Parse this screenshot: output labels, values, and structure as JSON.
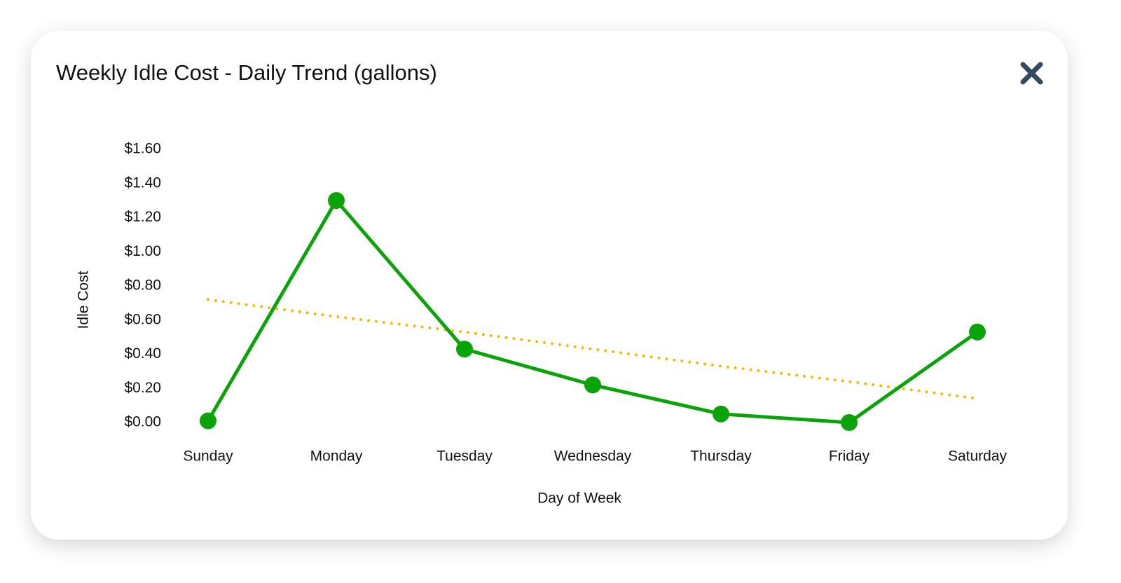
{
  "chart_data": {
    "type": "line",
    "title": "Weekly Idle Cost - Daily Trend (gallons)",
    "x_label": "Day of Week",
    "y_label": "Idle Cost",
    "categories": [
      "Sunday",
      "Monday",
      "Tuesday",
      "Wednesday",
      "Thursday",
      "Friday",
      "Saturday"
    ],
    "series": [
      {
        "color": "#0aa30a",
        "markers": true,
        "dashed": false,
        "values": [
          0.01,
          1.3,
          0.43,
          0.22,
          0.05,
          0.0,
          0.53
        ]
      },
      {
        "color": "#f5b800",
        "markers": false,
        "dashed": true,
        "values": [
          0.72,
          0.62,
          0.53,
          0.43,
          0.33,
          0.24,
          0.14
        ]
      }
    ],
    "ylim": [
      0,
      1.6
    ],
    "yticks": [
      {
        "value": 0,
        "label": "$0.00"
      },
      {
        "value": 0.2,
        "label": "$0.20"
      },
      {
        "value": 0.4,
        "label": "$0.40"
      },
      {
        "value": 0.6,
        "label": "$0.60"
      },
      {
        "value": 0.8,
        "label": "$0.80"
      },
      {
        "value": 1.0,
        "label": "$1.00"
      },
      {
        "value": 1.2,
        "label": "$1.20"
      },
      {
        "value": 1.4,
        "label": "$1.40"
      },
      {
        "value": 1.6,
        "label": "$1.60"
      }
    ],
    "grid": false
  }
}
